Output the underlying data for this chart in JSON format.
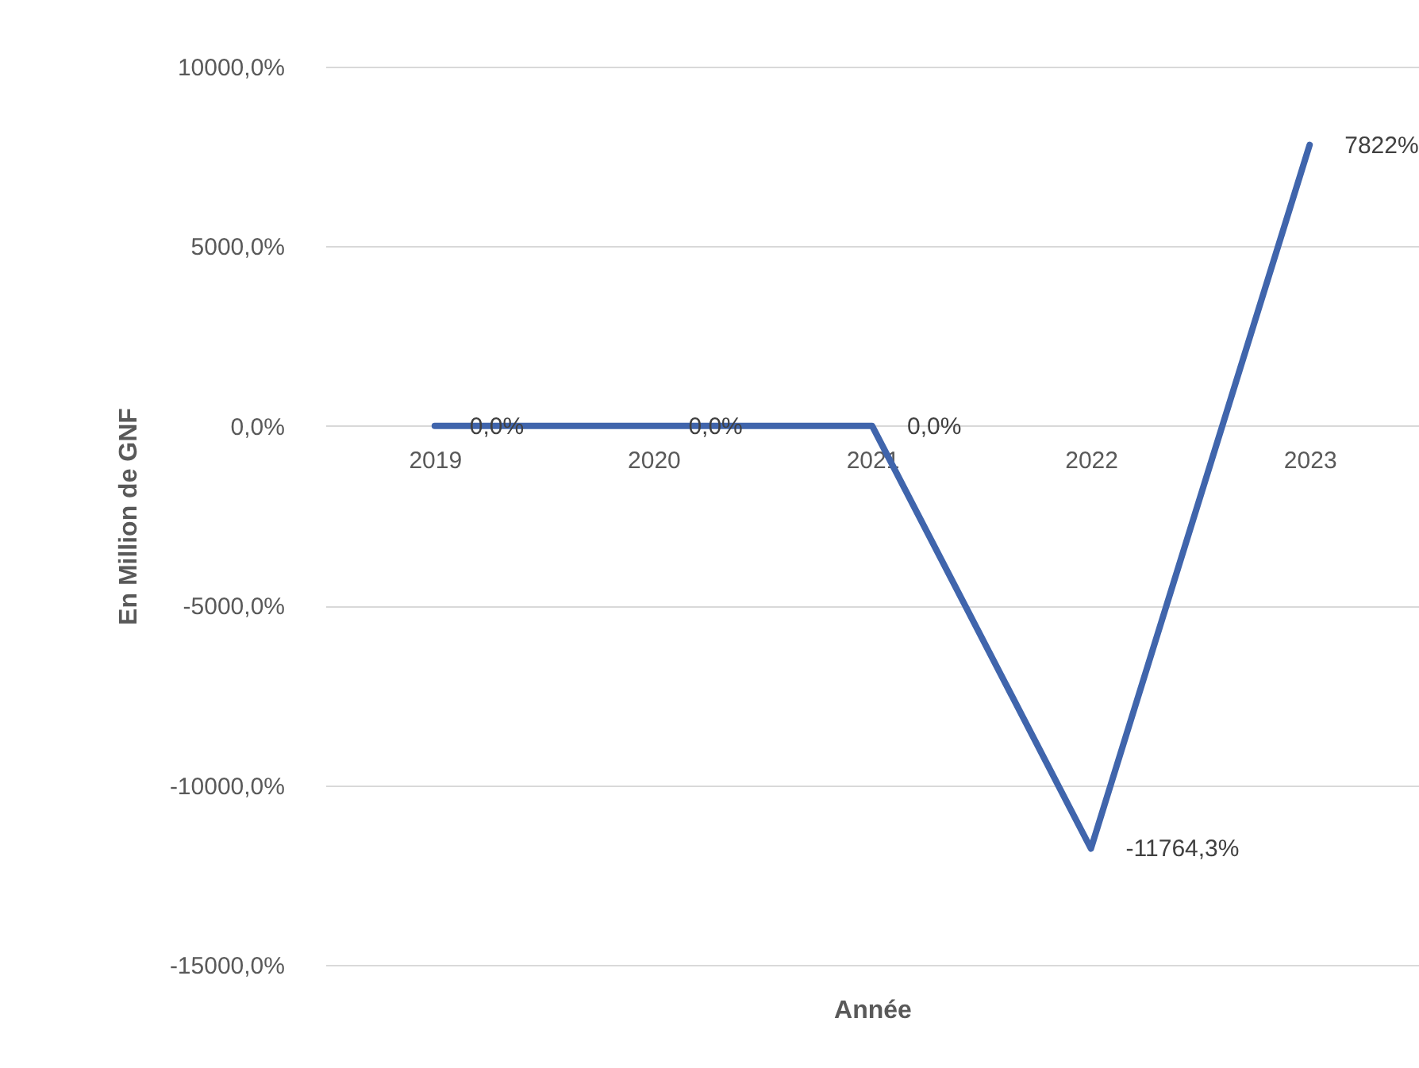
{
  "chart_data": {
    "type": "line",
    "ylabel": "En Million de GNF",
    "xlabel": "Année",
    "categories": [
      "2019",
      "2020",
      "2021",
      "2022",
      "2023"
    ],
    "series": [
      {
        "color": "#4065ac",
        "values": [
          0,
          0,
          0,
          -11764.3,
          7822
        ],
        "value_labels": [
          "0,0%",
          "0,0%",
          "0,0%",
          "-11764,3%",
          "7822%"
        ]
      }
    ],
    "ylim": [
      -15000,
      10000
    ],
    "yticks": [
      {
        "value": -15000,
        "label": "-15000,0%"
      },
      {
        "value": -10000,
        "label": "-10000,0%"
      },
      {
        "value": -5000,
        "label": "-5000,0%"
      },
      {
        "value": 0,
        "label": "0,0%"
      },
      {
        "value": 5000,
        "label": "5000,0%"
      },
      {
        "value": 10000,
        "label": "10000,0%"
      }
    ],
    "grid": "y",
    "marker": "none",
    "line_style": "solid"
  }
}
